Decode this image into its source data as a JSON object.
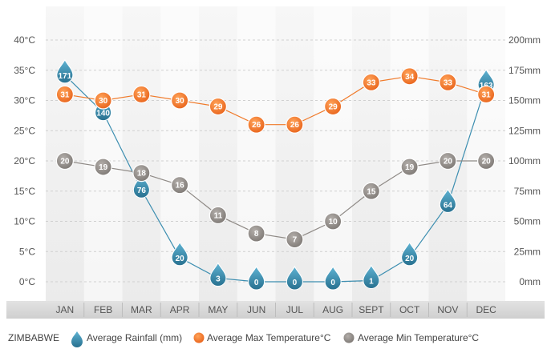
{
  "chart_data": {
    "type": "line",
    "title": "ZIMBABWE",
    "categories": [
      "JAN",
      "FEB",
      "MAR",
      "APR",
      "MAY",
      "JUN",
      "JUL",
      "AUG",
      "SEPT",
      "OCT",
      "NOV",
      "DEC"
    ],
    "series": [
      {
        "name": "Average Rainfall (mm)",
        "axis": "right",
        "values": [
          171,
          140,
          76,
          20,
          3,
          0,
          0,
          0,
          1,
          20,
          64,
          163
        ],
        "color": "#3c8eb0"
      },
      {
        "name": "Average Max Temperature°C",
        "axis": "left",
        "values": [
          31,
          30,
          31,
          30,
          29,
          26,
          26,
          29,
          33,
          34,
          33,
          31
        ],
        "color": "#f07a2a"
      },
      {
        "name": "Average Min Temperature°C",
        "axis": "left",
        "values": [
          20,
          19,
          18,
          16,
          11,
          8,
          7,
          10,
          15,
          19,
          20,
          20
        ],
        "color": "#8f8a86"
      }
    ],
    "left_axis": {
      "ticks": [
        "0°C",
        "5°C",
        "10°C",
        "15°C",
        "20°C",
        "25°C",
        "30°C",
        "35°C",
        "40°C"
      ],
      "ylim": [
        0,
        40
      ]
    },
    "right_axis": {
      "ticks": [
        "0mm",
        "25mm",
        "50mm",
        "75mm",
        "100mm",
        "125mm",
        "150mm",
        "175mm",
        "200mm"
      ],
      "ylim": [
        0,
        200
      ]
    },
    "grid": true,
    "legend_position": "bottom"
  }
}
